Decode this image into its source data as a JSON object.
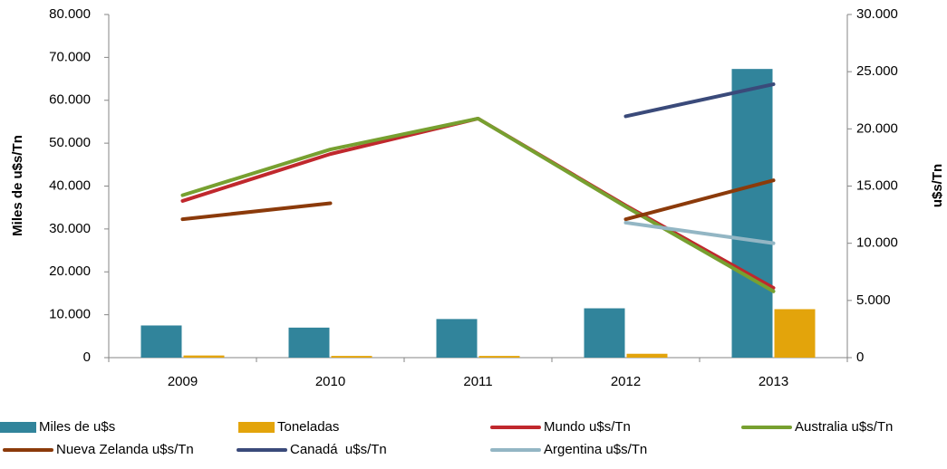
{
  "chart_data": {
    "type": "bar-line",
    "y_label": "Miles de u$s/Tn",
    "y2_label": "u$s/Tn",
    "categories": [
      "2009",
      "2010",
      "2011",
      "2012",
      "2013"
    ],
    "series": [
      {
        "name": "Miles de u$s",
        "type": "bar",
        "color": "#31849b",
        "values": [
          7500,
          7000,
          9000,
          11500,
          67300
        ]
      },
      {
        "name": "Toneladas",
        "type": "bar",
        "color": "#e3a40b",
        "values": [
          500,
          400,
          400,
          900,
          11300
        ]
      },
      {
        "name": "Mundo u$s/Tn",
        "type": "line",
        "axis": "y2",
        "color": "#c0282d",
        "values": [
          13700,
          17800,
          20900,
          13300,
          6100
        ]
      },
      {
        "name": "Australia u$s/Tn",
        "type": "line",
        "axis": "y2",
        "color": "#77a030",
        "values": [
          14200,
          18200,
          20900,
          13200,
          5800
        ]
      },
      {
        "name": "Nueva Zelanda u$s/Tn",
        "type": "line",
        "axis": "y2",
        "color": "#8b3a0a",
        "values": [
          12100,
          13500,
          null,
          12100,
          15500
        ]
      },
      {
        "name": "Canadá  u$s/Tn",
        "type": "line",
        "axis": "y2",
        "color": "#3a4a7a",
        "values": [
          null,
          null,
          null,
          21100,
          23900
        ]
      },
      {
        "name": "Argentina u$s/Tn",
        "type": "line",
        "axis": "y2",
        "color": "#93b6c4",
        "values": [
          null,
          null,
          null,
          11800,
          10000
        ]
      }
    ],
    "ylim": [
      0,
      80000
    ],
    "yticks": [
      0,
      {
        "value": 10000,
        "label": "10.000"
      },
      {
        "value": 20000,
        "label": "20.000"
      },
      {
        "value": 30000,
        "label": "30.000"
      },
      {
        "value": 40000,
        "label": "40.000"
      },
      {
        "value": 50000,
        "label": "50.000"
      },
      {
        "value": 60000,
        "label": "60.000"
      },
      {
        "value": 70000,
        "label": "70.000"
      },
      {
        "value": 80000,
        "label": "80.000"
      }
    ],
    "y2lim": [
      0,
      30000
    ],
    "y2ticks": [
      0,
      {
        "value": 5000,
        "label": "5.000"
      },
      {
        "value": 10000,
        "label": "10.000"
      },
      {
        "value": 15000,
        "label": "15.000"
      },
      {
        "value": 20000,
        "label": "20.000"
      },
      {
        "value": 25000,
        "label": "25.000"
      },
      {
        "value": 30000,
        "label": "30.000"
      }
    ],
    "legend": "bottom"
  }
}
